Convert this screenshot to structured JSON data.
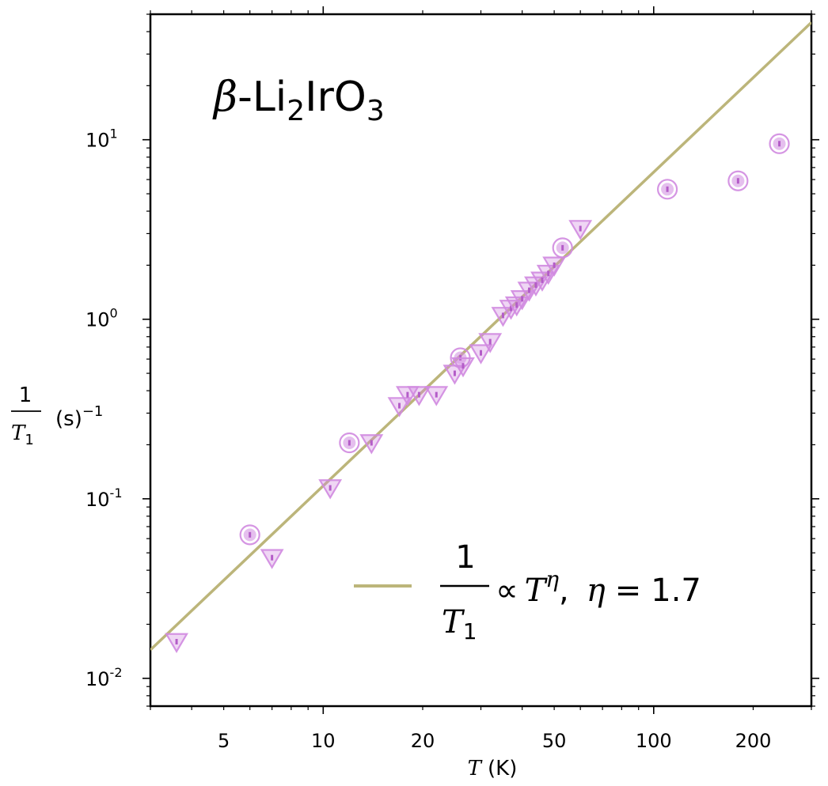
{
  "chart_data": {
    "type": "scatter",
    "title": "",
    "annotation": {
      "prefix": "β",
      "main": "-Li",
      "sub1": "2",
      "mid": "IrO",
      "sub2": "3"
    },
    "xlabel": {
      "symbol": "T",
      "unit": "(K)"
    },
    "ylabel": {
      "numerator": "1",
      "denominator": "T",
      "denominator_sub": "1",
      "unit": "(s)",
      "unit_exp": "−1"
    },
    "x_scale": "log",
    "y_scale": "log",
    "xlim": [
      3,
      300
    ],
    "ylim": [
      0.007,
      50
    ],
    "x_ticks": [
      {
        "value": 5,
        "label": "5"
      },
      {
        "value": 10,
        "label": "10"
      },
      {
        "value": 20,
        "label": "20"
      },
      {
        "value": 50,
        "label": "50"
      },
      {
        "value": 100,
        "label": "100"
      },
      {
        "value": 200,
        "label": "200"
      }
    ],
    "y_ticks": [
      {
        "value": 0.01,
        "base": "10",
        "exp": "-2"
      },
      {
        "value": 0.1,
        "base": "10",
        "exp": "-1"
      },
      {
        "value": 1,
        "base": "10",
        "exp": "0"
      },
      {
        "value": 10,
        "base": "10",
        "exp": "1"
      }
    ],
    "grid": false,
    "legend": {
      "placement": "lower-right",
      "frac_num": "1",
      "frac_den": "T",
      "frac_den_sub": "1",
      "relation": "∝",
      "power_base": "T",
      "power_exp": "η",
      "param": "η",
      "equals": "=",
      "value": "1.7",
      "color": "#bcb57a"
    },
    "fit_line": {
      "color": "#bcb57a",
      "points": [
        [
          3,
          0.0144
        ],
        [
          300,
          45
        ]
      ]
    },
    "series": [
      {
        "marker": "circle",
        "color": "#d08ae0",
        "x": [
          6.0,
          12.0,
          26.0,
          53.0,
          110,
          180,
          240
        ],
        "y": [
          0.063,
          0.205,
          0.61,
          2.5,
          5.3,
          5.9,
          9.5
        ]
      },
      {
        "marker": "triangle-down",
        "color": "#d08ae0",
        "x": [
          3.6,
          7.0,
          10.5,
          14.0,
          17.0,
          18.0,
          19.5,
          22.0,
          25.0,
          26.5,
          30.0,
          32.0,
          35.0,
          37.0,
          38.5,
          40.0,
          42.0,
          44.0,
          46.0,
          48.0,
          50.0,
          60.0
        ],
        "y": [
          0.016,
          0.047,
          0.115,
          0.205,
          0.33,
          0.38,
          0.38,
          0.38,
          0.5,
          0.55,
          0.65,
          0.75,
          1.05,
          1.15,
          1.2,
          1.3,
          1.45,
          1.55,
          1.65,
          1.8,
          2.0,
          3.2
        ]
      }
    ]
  }
}
